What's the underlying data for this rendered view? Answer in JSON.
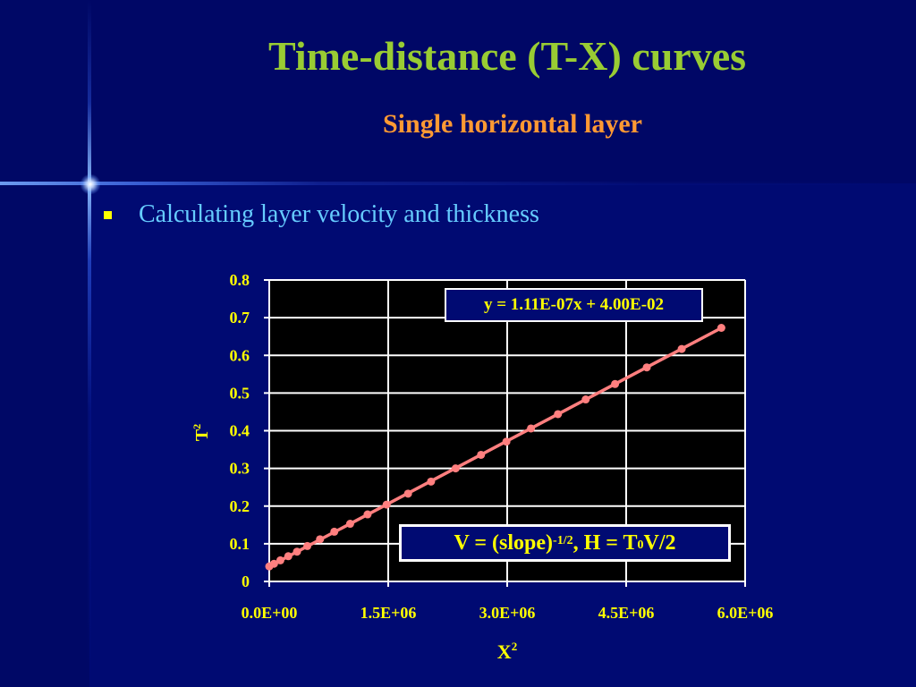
{
  "slide": {
    "title": "Time-distance (T-X) curves",
    "subtitle": "Single horizontal layer",
    "bullet": "Calculating layer velocity and thickness"
  },
  "annotations": {
    "trendline_equation": "y = 1.11E-07x + 4.00E-02",
    "formula": {
      "part1": "V = (slope)",
      "exp": "-1/2",
      "part2": " , H = T",
      "sub": "0",
      "part3": " V/2"
    }
  },
  "colors": {
    "background": "#000a72",
    "title": "#99cc33",
    "subtitle": "#ff9933",
    "bullet_text": "#66ccff",
    "bullet_marker": "#ffff00",
    "chart_text": "#ffff00",
    "plot_area": "#000000",
    "gridlines": "#ffffff",
    "series": "#ff7f7f"
  },
  "chart_data": {
    "type": "scatter",
    "title": "",
    "xlabel": "X",
    "xlabel_superscript": "2",
    "ylabel": "T",
    "ylabel_superscript": "2",
    "xlim": [
      0,
      6000000
    ],
    "ylim": [
      0,
      0.8
    ],
    "x_tick_values": [
      0,
      1500000,
      3000000,
      4500000,
      6000000
    ],
    "x_tick_labels": [
      "0.0E+00",
      "1.5E+06",
      "3.0E+06",
      "4.5E+06",
      "6.0E+06"
    ],
    "y_tick_values": [
      0,
      0.1,
      0.2,
      0.3,
      0.4,
      0.5,
      0.6,
      0.7,
      0.8
    ],
    "y_tick_labels": [
      "0",
      "0.1",
      "0.2",
      "0.3",
      "0.4",
      "0.5",
      "0.6",
      "0.7",
      "0.8"
    ],
    "grid": true,
    "series": [
      {
        "x": [
          0,
          60000,
          140000,
          240000,
          350000,
          480000,
          640000,
          820000,
          1020000,
          1240000,
          1480000,
          1750000,
          2040000,
          2350000,
          2670000,
          2990000,
          3300000,
          3640000,
          3990000,
          4360000,
          4760000,
          5200000,
          5700000
        ],
        "y": [
          0.04,
          0.047,
          0.056,
          0.067,
          0.079,
          0.094,
          0.112,
          0.132,
          0.153,
          0.178,
          0.204,
          0.233,
          0.265,
          0.3,
          0.336,
          0.371,
          0.406,
          0.444,
          0.483,
          0.524,
          0.568,
          0.617,
          0.673
        ],
        "color": "#ff7f7f"
      }
    ],
    "trendline": {
      "slope": 1.11e-07,
      "intercept": 0.04,
      "x_range": [
        0,
        5700000
      ]
    }
  }
}
